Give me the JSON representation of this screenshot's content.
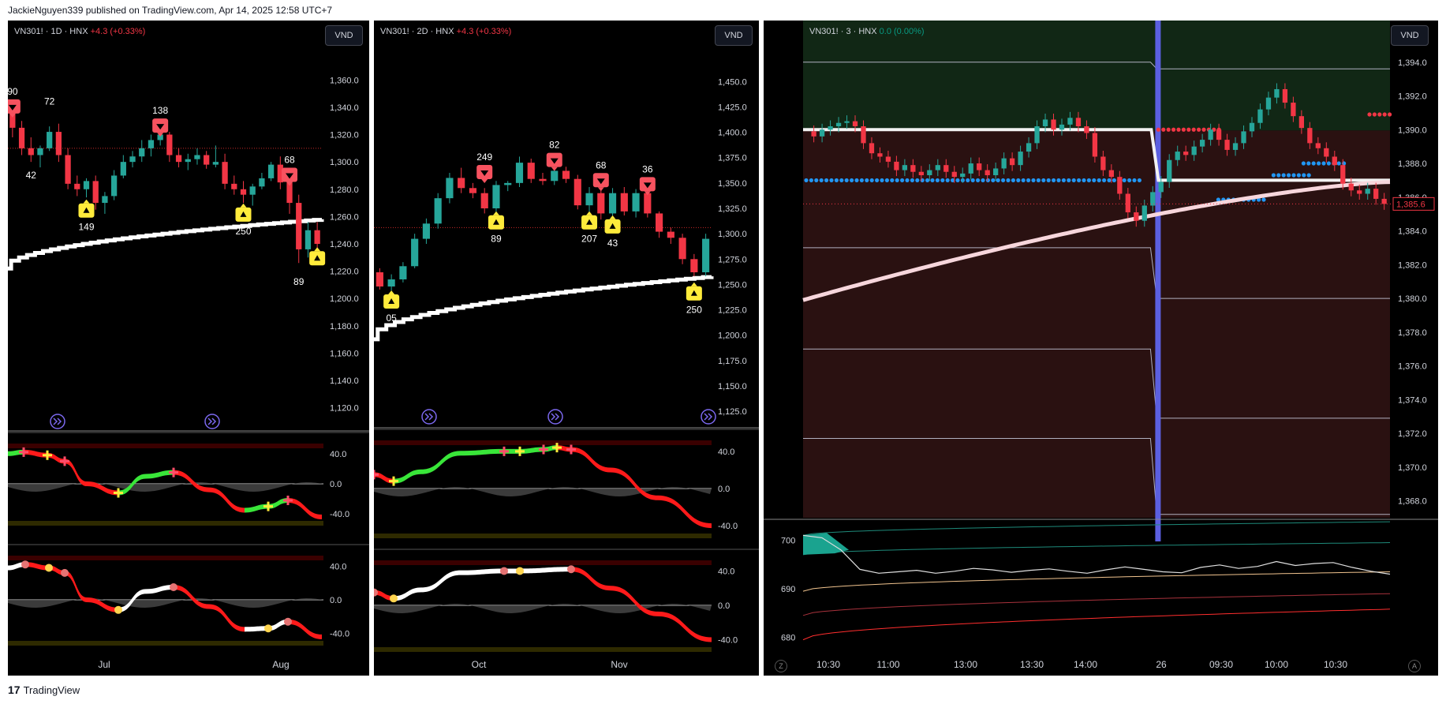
{
  "header": {
    "text": "JackieNguyen339 published on TradingView.com, Apr 14, 2025 12:58 UTC+7"
  },
  "footer": {
    "logo": "17",
    "brand": "TradingView"
  },
  "icons": {
    "logo": "tradingview-logo-icon",
    "event": "double-chevron-right-icon"
  },
  "colors": {
    "up": "#26a69a",
    "down": "#f23645",
    "ma": "#ffffff",
    "signal_sell": "#f7525f",
    "signal_buy": "#ffeb3b",
    "dot_blue": "#2196f3",
    "dot_red": "#f23645",
    "session_bar": "#5b5fe0"
  },
  "panels": [
    {
      "legend": "VN301! · 1D · HNX",
      "change": "+4.3 (+0.33%)",
      "currency": "VND",
      "y_labels": [
        "1,360.0",
        "1,340.0",
        "1,320.0",
        "1,300.0",
        "1,280.0",
        "1,260.0",
        "1,240.0",
        "1,220.0",
        "1,200.0",
        "1,180.0",
        "1,160.0",
        "1,140.0",
        "1,120.0"
      ],
      "osc1_labels": [
        "40.0",
        "0.0",
        "-40.0"
      ],
      "osc2_labels": [
        "40.0",
        "0.0",
        "-40.0"
      ],
      "x_labels": [
        "Jul",
        "Aug"
      ],
      "annotations": [
        "90",
        "72",
        "138",
        "68",
        "42",
        "149",
        "250",
        "89"
      ]
    },
    {
      "legend": "VN301! · 2D · HNX",
      "change": "+4.3 (+0.33%)",
      "currency": "VND",
      "y_labels": [
        "1,450.0",
        "1,425.0",
        "1,400.0",
        "1,375.0",
        "1,350.0",
        "1,325.0",
        "1,300.0",
        "1,275.0",
        "1,250.0",
        "1,225.0",
        "1,200.0",
        "1,175.0",
        "1,150.0",
        "1,125.0"
      ],
      "osc1_labels": [
        "40.0",
        "0.0",
        "-40.0"
      ],
      "osc2_labels": [
        "40.0",
        "0.0",
        "-40.0"
      ],
      "x_labels": [
        "Oct",
        "Nov"
      ],
      "annotations": [
        "249",
        "82",
        "68",
        "36",
        "89",
        "207",
        "43",
        "05",
        "250"
      ]
    },
    {
      "legend": "VN301! · 3 · HNX",
      "change": "0.0 (0.00%)",
      "currency": "VND",
      "y_labels": [
        "1,394.0",
        "1,392.0",
        "1,390.0",
        "1,388.0",
        "1,386.0",
        "1,384.0",
        "1,382.0",
        "1,380.0",
        "1,378.0",
        "1,376.0",
        "1,374.0",
        "1,372.0",
        "1,370.0",
        "1,368.0"
      ],
      "price_tag": "1,385.6",
      "sub_labels": [
        "700",
        "690",
        "680"
      ],
      "x_labels": [
        "10:30",
        "11:00",
        "13:00",
        "13:30",
        "14:00",
        "26",
        "09:30",
        "10:00",
        "10:30"
      ],
      "corner_left": "Z",
      "corner_right": "A"
    }
  ],
  "chart_data": [
    {
      "type": "candlestick",
      "title": "VN301! · 1D · HNX",
      "ylim": [
        1110,
        1370
      ],
      "x_ticks": [
        "Jul",
        "Aug"
      ],
      "candles": [
        [
          1336,
          1340,
          1318,
          1325
        ],
        [
          1325,
          1330,
          1305,
          1310
        ],
        [
          1310,
          1318,
          1300,
          1305
        ],
        [
          1305,
          1312,
          1296,
          1310
        ],
        [
          1310,
          1326,
          1308,
          1322
        ],
        [
          1322,
          1328,
          1300,
          1305
        ],
        [
          1305,
          1310,
          1280,
          1284
        ],
        [
          1284,
          1290,
          1275,
          1280
        ],
        [
          1280,
          1288,
          1274,
          1286
        ],
        [
          1286,
          1290,
          1265,
          1270
        ],
        [
          1270,
          1278,
          1262,
          1275
        ],
        [
          1275,
          1294,
          1272,
          1290
        ],
        [
          1290,
          1305,
          1288,
          1300
        ],
        [
          1300,
          1308,
          1296,
          1304
        ],
        [
          1304,
          1316,
          1300,
          1310
        ],
        [
          1310,
          1320,
          1304,
          1316
        ],
        [
          1316,
          1328,
          1312,
          1320
        ],
        [
          1320,
          1322,
          1300,
          1305
        ],
        [
          1305,
          1310,
          1296,
          1300
        ],
        [
          1300,
          1306,
          1294,
          1302
        ],
        [
          1302,
          1310,
          1298,
          1305
        ],
        [
          1305,
          1308,
          1295,
          1298
        ],
        [
          1298,
          1312,
          1296,
          1300
        ],
        [
          1300,
          1306,
          1280,
          1284
        ],
        [
          1284,
          1290,
          1276,
          1280
        ],
        [
          1280,
          1286,
          1270,
          1276
        ],
        [
          1276,
          1284,
          1268,
          1282
        ],
        [
          1282,
          1292,
          1280,
          1288
        ],
        [
          1288,
          1300,
          1286,
          1298
        ],
        [
          1298,
          1304,
          1280,
          1285
        ],
        [
          1285,
          1290,
          1262,
          1270
        ],
        [
          1270,
          1276,
          1226,
          1236
        ],
        [
          1236,
          1256,
          1230,
          1250
        ],
        [
          1250,
          1256,
          1236,
          1240
        ]
      ],
      "ma_start": 1222,
      "ma_end": 1258,
      "hline": 1310,
      "sell_markers": [
        {
          "i": 0,
          "v": 1340,
          "label": "90"
        },
        {
          "i": 16,
          "v": 1326,
          "label": "138"
        },
        {
          "i": 30,
          "v": 1290,
          "label": "68"
        }
      ],
      "buy_markers": [
        {
          "i": 8,
          "v": 1265,
          "label": "149"
        },
        {
          "i": 25,
          "v": 1262,
          "label": "250"
        },
        {
          "i": 33,
          "v": 1230,
          "label": ""
        }
      ],
      "labels": [
        {
          "i": 4,
          "v": 1342,
          "text": "72"
        },
        {
          "i": 2,
          "v": 1288,
          "text": "42"
        },
        {
          "i": 31,
          "v": 1210,
          "text": "89"
        }
      ]
    },
    {
      "type": "candlestick",
      "title": "VN301! · 2D · HNX",
      "ylim": [
        1115,
        1465
      ],
      "x_ticks": [
        "Oct",
        "Nov"
      ],
      "candles": [
        [
          1262,
          1266,
          1245,
          1248
        ],
        [
          1248,
          1260,
          1244,
          1255
        ],
        [
          1255,
          1272,
          1252,
          1268
        ],
        [
          1268,
          1300,
          1266,
          1295
        ],
        [
          1295,
          1315,
          1290,
          1310
        ],
        [
          1310,
          1340,
          1305,
          1335
        ],
        [
          1335,
          1360,
          1330,
          1355
        ],
        [
          1355,
          1365,
          1340,
          1345
        ],
        [
          1345,
          1350,
          1335,
          1340
        ],
        [
          1340,
          1345,
          1320,
          1325
        ],
        [
          1325,
          1352,
          1322,
          1348
        ],
        [
          1348,
          1352,
          1342,
          1350
        ],
        [
          1350,
          1376,
          1346,
          1370
        ],
        [
          1370,
          1374,
          1350,
          1354
        ],
        [
          1354,
          1360,
          1348,
          1352
        ],
        [
          1352,
          1368,
          1348,
          1362
        ],
        [
          1362,
          1366,
          1350,
          1354
        ],
        [
          1354,
          1358,
          1324,
          1328
        ],
        [
          1328,
          1346,
          1322,
          1340
        ],
        [
          1340,
          1348,
          1314,
          1320
        ],
        [
          1320,
          1345,
          1318,
          1340
        ],
        [
          1340,
          1346,
          1318,
          1322
        ],
        [
          1322,
          1344,
          1316,
          1340
        ],
        [
          1340,
          1344,
          1316,
          1320
        ],
        [
          1320,
          1322,
          1296,
          1302
        ],
        [
          1302,
          1306,
          1290,
          1296
        ],
        [
          1296,
          1300,
          1270,
          1275
        ],
        [
          1275,
          1280,
          1258,
          1262
        ],
        [
          1262,
          1300,
          1258,
          1295
        ]
      ],
      "ma_start": 1196,
      "ma_end": 1258,
      "hline": 1306,
      "sell_markers": [
        {
          "i": 9,
          "v": 1360,
          "label": "249"
        },
        {
          "i": 15,
          "v": 1372,
          "label": "82"
        },
        {
          "i": 19,
          "v": 1352,
          "label": "68"
        },
        {
          "i": 23,
          "v": 1348,
          "label": "36"
        }
      ],
      "buy_markers": [
        {
          "i": 1,
          "v": 1234,
          "label": "05"
        },
        {
          "i": 10,
          "v": 1312,
          "label": "89"
        },
        {
          "i": 18,
          "v": 1312,
          "label": "207"
        },
        {
          "i": 20,
          "v": 1308,
          "label": "43"
        },
        {
          "i": 27,
          "v": 1242,
          "label": "250"
        }
      ]
    },
    {
      "type": "candlestick",
      "title": "VN301! · 3 · HNX",
      "ylim": [
        1367,
        1396
      ],
      "x_ticks": [
        "10:30",
        "11:00",
        "13:00",
        "13:30",
        "14:00",
        "26",
        "09:30",
        "10:00",
        "10:30"
      ],
      "last_price": 1385.6,
      "session_split_frac": 0.6,
      "blue_dot_level_1": 1387.0,
      "red_dot_level": 1390.0,
      "upper_zone_level": 1389.95,
      "ma_start": 1379.9,
      "ma_end": 1386.9,
      "sub_chart": {
        "ylim": [
          677,
          703
        ],
        "ticks": [
          700,
          690,
          680
        ]
      }
    }
  ]
}
